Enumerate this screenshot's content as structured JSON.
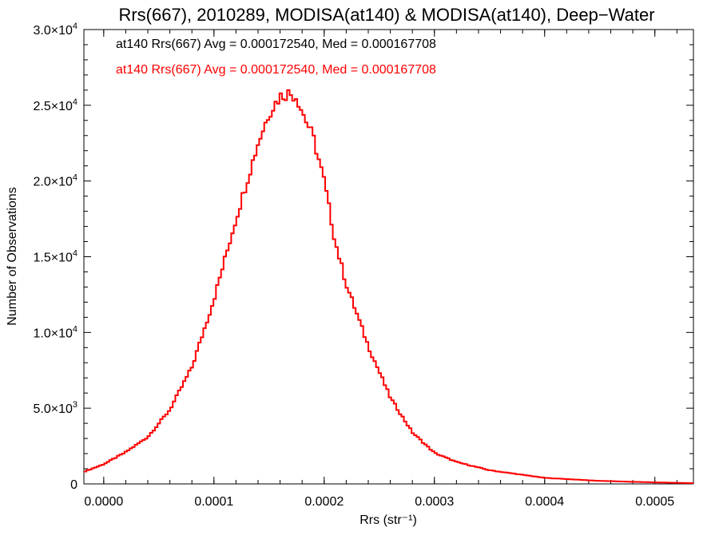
{
  "chart_data": {
    "type": "histogram",
    "title": "Rrs(667), 2010289, MODISA(at140) & MODISA(at140), Deep−Water",
    "xlabel": "Rrs (str⁻¹)",
    "ylabel": "Number of Observations",
    "xlim": [
      -1.8e-05,
      0.000535
    ],
    "ylim": [
      0,
      30000
    ],
    "grid": false,
    "x_tick_labels": [
      "0.0000",
      "0.0001",
      "0.0002",
      "0.0003",
      "0.0004",
      "0.0005"
    ],
    "x_tick_values": [
      0.0,
      0.0001,
      0.0002,
      0.0003,
      0.0004,
      0.0005
    ],
    "y_tick_labels": [
      {
        "value": 0,
        "mantissa": "0",
        "exponent": ""
      },
      {
        "value": 5000,
        "mantissa": "5.0×10",
        "exponent": "3"
      },
      {
        "value": 10000,
        "mantissa": "1.0×10",
        "exponent": "4"
      },
      {
        "value": 15000,
        "mantissa": "1.5×10",
        "exponent": "4"
      },
      {
        "value": 20000,
        "mantissa": "2.0×10",
        "exponent": "4"
      },
      {
        "value": 25000,
        "mantissa": "2.5×10",
        "exponent": "4"
      },
      {
        "value": 30000,
        "mantissa": "3.0×10",
        "exponent": "4"
      }
    ],
    "legend": {
      "placement": "top-left",
      "entries": [
        {
          "text": "at140 Rrs(667) Avg = 0.000172540, Med = 0.000167708",
          "color": "#000000"
        },
        {
          "text": "at140 Rrs(667) Avg = 0.000172540, Med = 0.000167708",
          "color": "#ff0000"
        }
      ]
    },
    "series": [
      {
        "color": "#ff0000",
        "x": [
          -1.8e-05,
          0.0,
          2e-05,
          4e-05,
          6e-05,
          8e-05,
          0.0001,
          0.00012,
          0.00014,
          0.00015,
          0.00016,
          0.000167,
          0.000175,
          0.00018,
          0.00019,
          0.0002,
          0.00021,
          0.00022,
          0.00024,
          0.00026,
          0.00028,
          0.0003,
          0.00032,
          0.00035,
          0.0004,
          0.00045,
          0.0005,
          0.000535
        ],
        "y": [
          800,
          1300,
          2100,
          3100,
          4900,
          7700,
          12200,
          17500,
          22500,
          24500,
          25600,
          25800,
          25600,
          24600,
          22900,
          20000,
          16000,
          13200,
          9100,
          5700,
          3400,
          2050,
          1450,
          900,
          400,
          200,
          100,
          50
        ]
      }
    ]
  }
}
